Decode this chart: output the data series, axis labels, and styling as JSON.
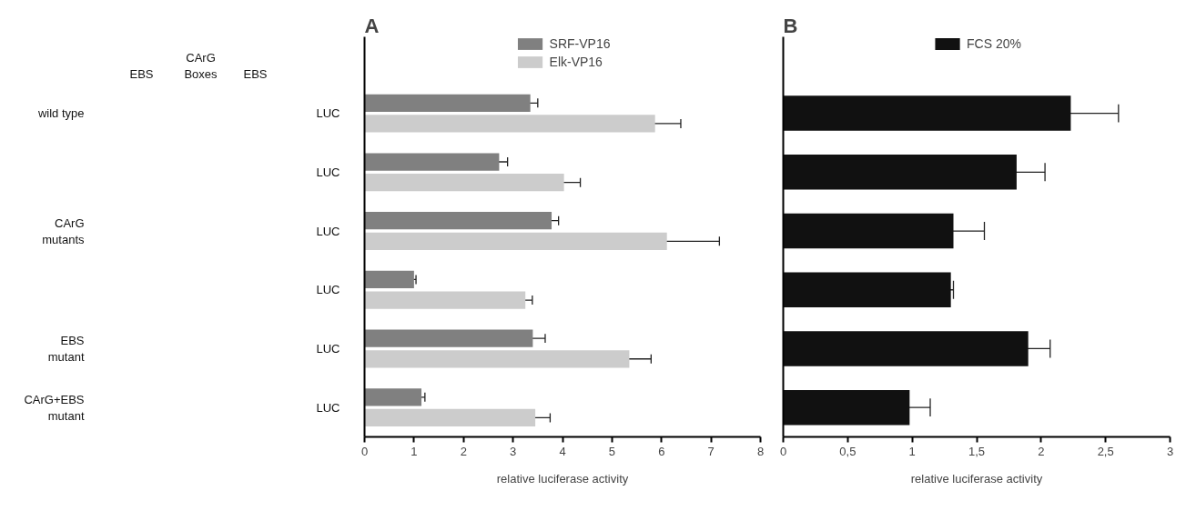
{
  "chart_data": [
    {
      "type": "other",
      "categories": [
        "wild type",
        null,
        "CArG mutants",
        null,
        "EBS mutant",
        "CArG+EBS mutant"
      ],
      "annotations": [
        "EBS",
        "CArG Boxes",
        "EBS",
        "LUC",
        "LUC",
        "LUC",
        "LUC",
        "LUC",
        "LUC"
      ]
    },
    {
      "type": "bar",
      "title": "A",
      "orientation": "horizontal",
      "categories": [
        null,
        null,
        null,
        null,
        null,
        null
      ],
      "series": [
        {
          "name": "SRF-VP16",
          "color": "#808080",
          "values": [
            3.35,
            2.72,
            3.78,
            1.0,
            3.4,
            1.15
          ],
          "errors": [
            0.15,
            0.17,
            0.14,
            0.04,
            0.25,
            0.07
          ]
        },
        {
          "name": "Elk-VP16",
          "color": "#cccccc",
          "values": [
            5.87,
            4.03,
            6.11,
            3.25,
            5.35,
            3.45
          ],
          "errors": [
            0.52,
            0.33,
            1.06,
            0.14,
            0.44,
            0.3
          ]
        }
      ],
      "xlabel": "relative luciferase activity",
      "xlim": [
        0,
        8
      ],
      "xticks": [
        0,
        1,
        2,
        3,
        4,
        5,
        6,
        7,
        8
      ],
      "tick_labels": "x",
      "legend": "top"
    },
    {
      "type": "bar",
      "title": "B",
      "orientation": "horizontal",
      "categories": [
        null,
        null,
        null,
        null,
        null,
        null
      ],
      "series": [
        {
          "name": "FCS 20%",
          "color": "#111111",
          "values": [
            2.23,
            1.81,
            1.32,
            1.3,
            1.9,
            0.98
          ],
          "errors": [
            0.37,
            0.22,
            0.24,
            0.02,
            0.17,
            0.16
          ]
        }
      ],
      "xlabel": "relative luciferase activity",
      "xlim": [
        0,
        3
      ],
      "xticks": [
        0,
        {
          "value": 0.5,
          "label": "0,5"
        },
        1,
        {
          "value": 1.5,
          "label": "1,5"
        },
        2,
        {
          "value": 2.5,
          "label": "2,5"
        },
        3
      ],
      "tick_labels": "x",
      "legend": "top"
    }
  ]
}
